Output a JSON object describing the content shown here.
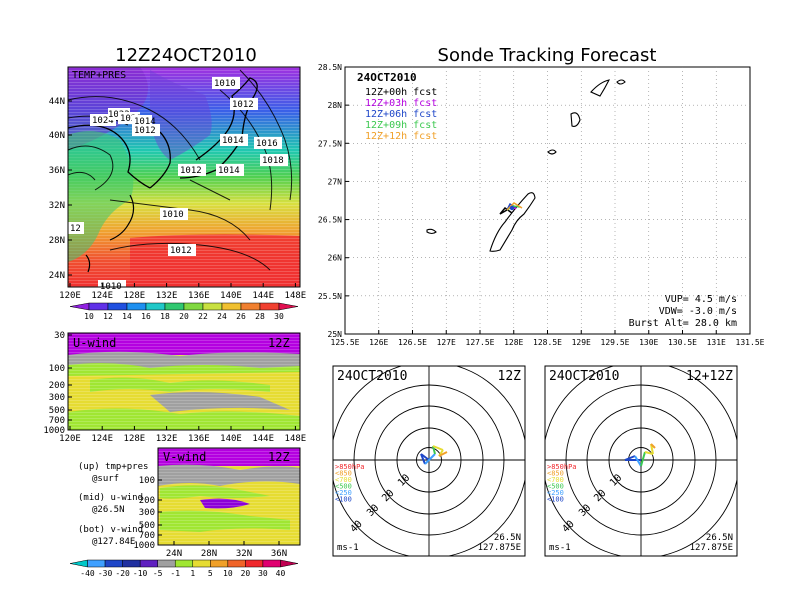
{
  "left_title": "12Z24OCT2010",
  "right_title": "Sonde Tracking Forecast",
  "colors": {
    "purple": "#8c00d8",
    "magenta": "#b400e0",
    "blue": "#1e46c8",
    "lightblue": "#3fa0ff",
    "cyan": "#00c8c8",
    "green": "#3cc850",
    "lime": "#a0e632",
    "yellow": "#e6dc32",
    "orange": "#f0a028",
    "redorange": "#f06428",
    "red": "#f0282d",
    "gray": "#a0a0a0"
  },
  "chart_data": [
    {
      "type": "contour",
      "panel": "temp_pres",
      "label": "TEMP+PRES",
      "x_ticks": [
        "120E",
        "124E",
        "128E",
        "132E",
        "136E",
        "140E",
        "144E",
        "148E"
      ],
      "y_ticks": [
        "44N",
        "40N",
        "36N",
        "32N",
        "28N",
        "24N"
      ],
      "contour_labels": [
        "1010",
        "1012",
        "1024",
        "1022",
        "1020",
        "1014",
        "1012",
        "1014",
        "1016",
        "1018",
        "1012",
        "1014",
        "1010",
        "12",
        "1012",
        "1010",
        "1010"
      ],
      "colorbar_values": [
        "10",
        "12",
        "14",
        "16",
        "18",
        "20",
        "22",
        "24",
        "26",
        "28",
        "30"
      ]
    },
    {
      "type": "contour",
      "panel": "u_wind",
      "label": "U-wind",
      "time_label": "12Z",
      "x_ticks": [
        "120E",
        "124E",
        "128E",
        "132E",
        "136E",
        "140E",
        "144E",
        "148E"
      ],
      "y_ticks": [
        "30",
        "100",
        "200",
        "300",
        "500",
        "700",
        "1000"
      ]
    },
    {
      "type": "contour",
      "panel": "v_wind",
      "label": "V-wind",
      "time_label": "12Z",
      "x_ticks": [
        "24N",
        "28N",
        "32N",
        "36N"
      ],
      "y_ticks": [
        "100",
        "200",
        "300",
        "500",
        "700",
        "1000"
      ],
      "colorbar_values": [
        "-40",
        "-30",
        "-20",
        "-10",
        "-5",
        "-1",
        "1",
        "5",
        "10",
        "20",
        "30",
        "40"
      ]
    },
    {
      "type": "map",
      "panel": "sonde_track",
      "date_label": "24OCT2010",
      "x_ticks": [
        "125.5E",
        "126E",
        "126.5E",
        "127E",
        "127.5E",
        "128E",
        "128.5E",
        "129E",
        "129.5E",
        "130E",
        "130.5E",
        "131E",
        "131.5E"
      ],
      "y_ticks": [
        "28.5N",
        "28N",
        "27.5N",
        "27N",
        "26.5N",
        "26N",
        "25.5N",
        "25N"
      ],
      "xlim": [
        125.5,
        131.5
      ],
      "ylim": [
        25.0,
        28.5
      ],
      "legend": [
        "12Z+00h fcst",
        "12Z+03h fcst",
        "12Z+06h fcst",
        "12Z+09h fcst",
        "12Z+12h fcst"
      ],
      "launch": {
        "lon": 127.875,
        "lat": 26.5
      },
      "stats": {
        "vup": "VUP= 4.5 m/s",
        "vdw": "VDW= -3.0 m/s",
        "burst": "Burst Alt= 28.0 km"
      }
    },
    {
      "type": "hodograph",
      "panel": "hodo_1",
      "date_label": "24OCT2010",
      "time_label": "12Z",
      "rings": [
        "10",
        "20",
        "30",
        "40"
      ],
      "levels": [
        ">850hPa",
        "<850",
        "<700",
        "<500",
        "<250",
        "<100"
      ],
      "unit": "ms-1",
      "lat_label": "26.5N",
      "lon_label": "127.875E"
    },
    {
      "type": "hodograph",
      "panel": "hodo_2",
      "date_label": "24OCT2010",
      "time_label": "12+12Z",
      "rings": [
        "10",
        "20",
        "30",
        "40"
      ],
      "levels": [
        ">850hPa",
        "<850",
        "<700",
        "<500",
        "<250",
        "<100"
      ],
      "unit": "ms-1",
      "lat_label": "26.5N",
      "lon_label": "127.875E"
    }
  ],
  "caption": {
    "up_1": "(up) tmp+pres",
    "up_2": "@surf",
    "mid_1": "(mid) u-wind",
    "mid_2": "@26.5N",
    "bot_1": "(bot) v-wind",
    "bot_2": "@127.84E"
  }
}
